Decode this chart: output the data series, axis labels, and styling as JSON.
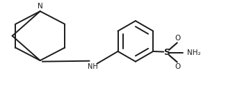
{
  "bg_color": "#ffffff",
  "line_color": "#1a1a1a",
  "line_width": 1.4,
  "figsize": [
    3.25,
    1.31
  ],
  "dpi": 100,
  "xlim": [
    0,
    10.5
  ],
  "ylim": [
    0,
    4.1
  ]
}
